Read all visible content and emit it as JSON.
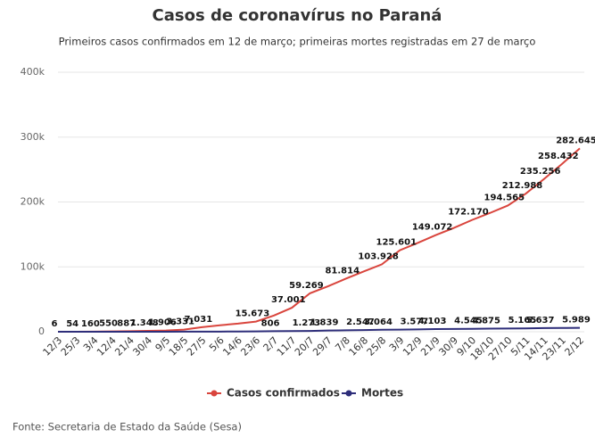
{
  "chart_data": {
    "type": "line",
    "title": "Casos de coronavírus no Paraná",
    "subtitle": "Primeiros casos confirmados em 12 de março; primeiras mortes registradas em 27 de março",
    "source": "Fonte: Secretaria de Estado da Saúde (Sesa)",
    "categories": [
      "12/3",
      "25/3",
      "3/4",
      "12/4",
      "21/4",
      "30/4",
      "9/5",
      "18/5",
      "27/5",
      "5/6",
      "14/6",
      "23/6",
      "2/7",
      "11/7",
      "20/7",
      "29/7",
      "7/8",
      "16/8",
      "25/8",
      "3/9",
      "12/9",
      "21/9",
      "30/9",
      "9/10",
      "18/10",
      "27/10",
      "5/11",
      "14/11",
      "23/11",
      "2/12"
    ],
    "series": [
      {
        "name": "Casos confirmados",
        "color": "#d9453d",
        "values": [
          6,
          54,
          160,
          550,
          887,
          1348,
          1906,
          3331,
          7031,
          10000,
          12500,
          15673,
          25000,
          37001,
          59269,
          70000,
          81814,
          93000,
          103928,
          125601,
          137000,
          149072,
          160000,
          172170,
          183000,
          194565,
          212988,
          235256,
          258432,
          282645
        ],
        "value_labels": [
          "6",
          "54",
          "160",
          "550",
          "887",
          "1.348",
          "1.906",
          "3.331",
          "7.031",
          null,
          null,
          "15.673",
          null,
          "37.001",
          "59.269",
          null,
          "81.814",
          null,
          "103.928",
          "125.601",
          null,
          "149.072",
          null,
          "172.170",
          null,
          "194.565",
          "212.988",
          "235.256",
          "258.432",
          "282.645"
        ]
      },
      {
        "name": "Mortes",
        "color": "#2e2e7a",
        "values": [
          0,
          1,
          4,
          20,
          40,
          55,
          70,
          100,
          150,
          220,
          350,
          550,
          806,
          1050,
          1273,
          1839,
          2200,
          2547,
          3064,
          3300,
          3577,
          4103,
          4300,
          4545,
          4875,
          5000,
          5165,
          5637,
          5800,
          5989
        ],
        "value_labels": [
          null,
          null,
          null,
          null,
          null,
          null,
          null,
          null,
          null,
          null,
          null,
          null,
          "806",
          null,
          "1.273",
          "1.839",
          null,
          "2.547",
          "3.064",
          null,
          "3.577",
          "4.103",
          null,
          "4.545",
          "4.875",
          null,
          "5.165",
          "5.637",
          null,
          "5.989"
        ]
      }
    ],
    "ylim": [
      0,
      400000
    ],
    "yticks": [
      0,
      {
        "value": 100000,
        "label": "100k"
      },
      {
        "value": 200000,
        "label": "200k"
      },
      {
        "value": 300000,
        "label": "300k"
      },
      {
        "value": 400000,
        "label": "400k"
      }
    ],
    "grid": true,
    "legend": "bottom"
  }
}
